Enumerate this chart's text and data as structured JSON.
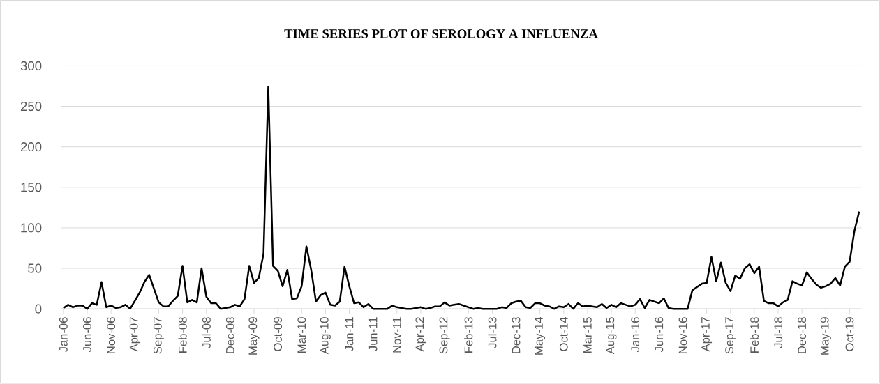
{
  "chart_data": {
    "type": "line",
    "title": "TIME SERIES PLOT OF SEROLOGY A INFLUENZA",
    "categories": [
      "Jan-06",
      null,
      null,
      null,
      null,
      "Jun-06",
      null,
      null,
      null,
      null,
      "Nov-06",
      null,
      null,
      null,
      null,
      "Apr-07",
      null,
      null,
      null,
      null,
      "Sep-07",
      null,
      null,
      null,
      null,
      "Feb-08",
      null,
      null,
      null,
      null,
      "Jul-08",
      null,
      null,
      null,
      null,
      "Dec-08",
      null,
      null,
      null,
      null,
      "May-09",
      null,
      null,
      null,
      null,
      "Oct-09",
      null,
      null,
      null,
      null,
      "Mar-10",
      null,
      null,
      null,
      null,
      "Aug-10",
      null,
      null,
      null,
      null,
      "Jan-11",
      null,
      null,
      null,
      null,
      "Jun-11",
      null,
      null,
      null,
      null,
      "Nov-11",
      null,
      null,
      null,
      null,
      "Apr-12",
      null,
      null,
      null,
      null,
      "Sep-12",
      null,
      null,
      null,
      null,
      "Feb-13",
      null,
      null,
      null,
      null,
      "Jul-13",
      null,
      null,
      null,
      null,
      "Dec-13",
      null,
      null,
      null,
      null,
      "May-14",
      null,
      null,
      null,
      null,
      "Oct-14",
      null,
      null,
      null,
      null,
      "Mar-15",
      null,
      null,
      null,
      null,
      "Aug-15",
      null,
      null,
      null,
      null,
      "Jan-16",
      null,
      null,
      null,
      null,
      "Jun-16",
      null,
      null,
      null,
      null,
      "Nov-16",
      null,
      null,
      null,
      null,
      "Apr-17",
      null,
      null,
      null,
      null,
      "Sep-17",
      null,
      null,
      null,
      null,
      "Feb-18",
      null,
      null,
      null,
      null,
      "Jul-18",
      null,
      null,
      null,
      null,
      "Dec-18",
      null,
      null,
      null,
      null,
      "May-19",
      null,
      null,
      null,
      null,
      "Oct-19",
      null,
      null
    ],
    "values": [
      1,
      5,
      2,
      4,
      4,
      0,
      7,
      5,
      33,
      2,
      4,
      1,
      2,
      5,
      0,
      10,
      20,
      33,
      42,
      25,
      8,
      3,
      3,
      10,
      16,
      53,
      8,
      11,
      8,
      50,
      15,
      7,
      7,
      0,
      1,
      2,
      5,
      3,
      12,
      53,
      32,
      38,
      68,
      274,
      53,
      47,
      28,
      48,
      12,
      13,
      28,
      77,
      48,
      9,
      17,
      20,
      5,
      4,
      9,
      52,
      28,
      7,
      8,
      2,
      6,
      0,
      0,
      0,
      0,
      4,
      2,
      1,
      0,
      0,
      1,
      2,
      0,
      1,
      3,
      3,
      8,
      4,
      5,
      6,
      4,
      2,
      0,
      1,
      0,
      0,
      0,
      0,
      2,
      1,
      7,
      9,
      10,
      2,
      1,
      7,
      7,
      4,
      3,
      0,
      3,
      2,
      6,
      0,
      7,
      3,
      4,
      3,
      2,
      6,
      1,
      5,
      2,
      7,
      5,
      3,
      5,
      12,
      1,
      11,
      9,
      7,
      13,
      1,
      0,
      0,
      0,
      0,
      23,
      27,
      31,
      32,
      64,
      34,
      57,
      32,
      22,
      41,
      37,
      50,
      55,
      44,
      52,
      10,
      7,
      7,
      3,
      8,
      11,
      34,
      31,
      29,
      45,
      37,
      30,
      26,
      28,
      31,
      38,
      29,
      52,
      58,
      96,
      120
    ],
    "color": "#000000",
    "ylim": [
      0,
      300
    ],
    "yticks": [
      0,
      50,
      100,
      150,
      200,
      250,
      300
    ],
    "grid": "y"
  }
}
